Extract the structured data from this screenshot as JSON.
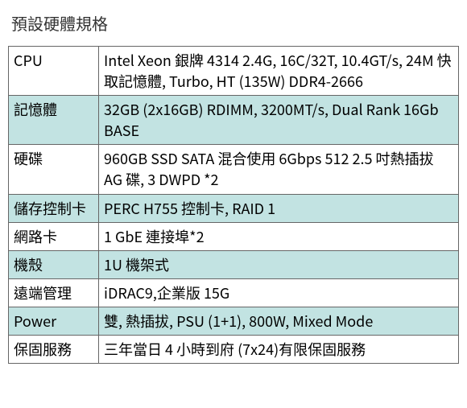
{
  "title": "預設硬體規格",
  "colors": {
    "alt_row_bg": "#c2e3e2",
    "row_bg": "#ffffff",
    "border": "#666666",
    "text": "#000000",
    "title_text": "#333333"
  },
  "table": {
    "columns": [
      "spec_name",
      "spec_value"
    ],
    "col_widths": [
      "112px",
      "auto"
    ],
    "rows": [
      {
        "label": "CPU",
        "value": "Intel Xeon 銀牌 4314 2.4G, 16C/32T, 10.4GT/s, 24M 快取記憶體, Turbo, HT (135W) DDR4-2666",
        "alt": false
      },
      {
        "label": "記憶體",
        "value": "32GB (2x16GB) RDIMM, 3200MT/s, Dual Rank 16Gb BASE",
        "alt": true
      },
      {
        "label": "硬碟",
        "value": "960GB SSD SATA 混合使用 6Gbps 512 2.5 吋熱插拔 AG 碟, 3 DWPD *2",
        "alt": false
      },
      {
        "label": "儲存控制卡",
        "value": "PERC H755 控制卡, RAID 1",
        "alt": true
      },
      {
        "label": "網路卡",
        "value": "1 GbE 連接埠*2",
        "alt": false
      },
      {
        "label": "機殼",
        "value": "1U 機架式",
        "alt": true
      },
      {
        "label": "遠端管理",
        "value": "iDRAC9,企業版 15G",
        "alt": false
      },
      {
        "label": "Power",
        "value": "雙, 熱插拔, PSU (1+1), 800W, Mixed Mode",
        "alt": true
      },
      {
        "label": "保固服務",
        "value": "三年當日 4 小時到府 (7x24)有限保固服務",
        "alt": false
      }
    ]
  }
}
